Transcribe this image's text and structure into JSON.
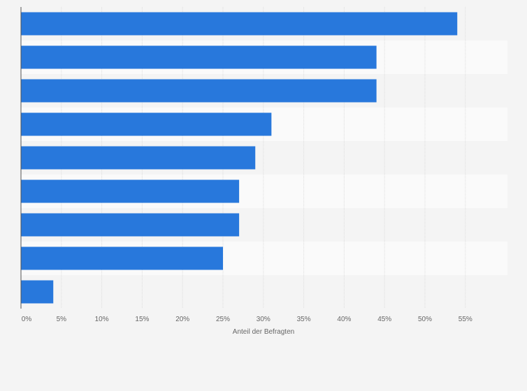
{
  "chart_data": {
    "type": "bar",
    "orientation": "horizontal",
    "categories": [
      "",
      "",
      "",
      "",
      "",
      "",
      "",
      "",
      ""
    ],
    "values": [
      54,
      44,
      44,
      31,
      29,
      27,
      27,
      25,
      4
    ],
    "xlabel": "Anteil der Befragten",
    "xlim": [
      0,
      60
    ],
    "x_ticks": [
      "0%",
      "5%",
      "10%",
      "15%",
      "20%",
      "25%",
      "30%",
      "35%",
      "40%",
      "45%",
      "50%",
      "55%"
    ],
    "grid": true,
    "legend": "none"
  },
  "colors": {
    "bar": "#2878dc",
    "grid": "#dddddd",
    "band_light": "#fafafa",
    "band_dark": "#f4f4f4",
    "axis": "#555555"
  }
}
